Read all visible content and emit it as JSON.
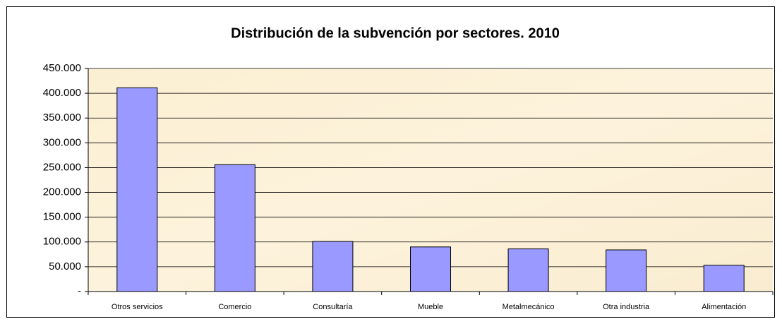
{
  "chart_data": {
    "type": "bar",
    "title": "Distribución de la subvención por sectores. 2010",
    "categories": [
      "Otros servicios",
      "Comercio",
      "Consultaría",
      "Mueble",
      "Metalmecánico",
      "Otra industria",
      "Alimentación"
    ],
    "values": [
      411000,
      256000,
      101000,
      90000,
      86000,
      84000,
      53000
    ],
    "color": "#9999ff",
    "ylim": [
      0,
      450000
    ],
    "yticks": [
      {
        "value": 0,
        "label": "-"
      },
      {
        "value": 50000,
        "label": "50.000"
      },
      {
        "value": 100000,
        "label": "100.000"
      },
      {
        "value": 150000,
        "label": "150.000"
      },
      {
        "value": 200000,
        "label": "200.000"
      },
      {
        "value": 250000,
        "label": "250.000"
      },
      {
        "value": 300000,
        "label": "300.000"
      },
      {
        "value": 350000,
        "label": "350.000"
      },
      {
        "value": 400000,
        "label": "400.000"
      },
      {
        "value": 450000,
        "label": "450.000"
      }
    ],
    "grid": true
  }
}
